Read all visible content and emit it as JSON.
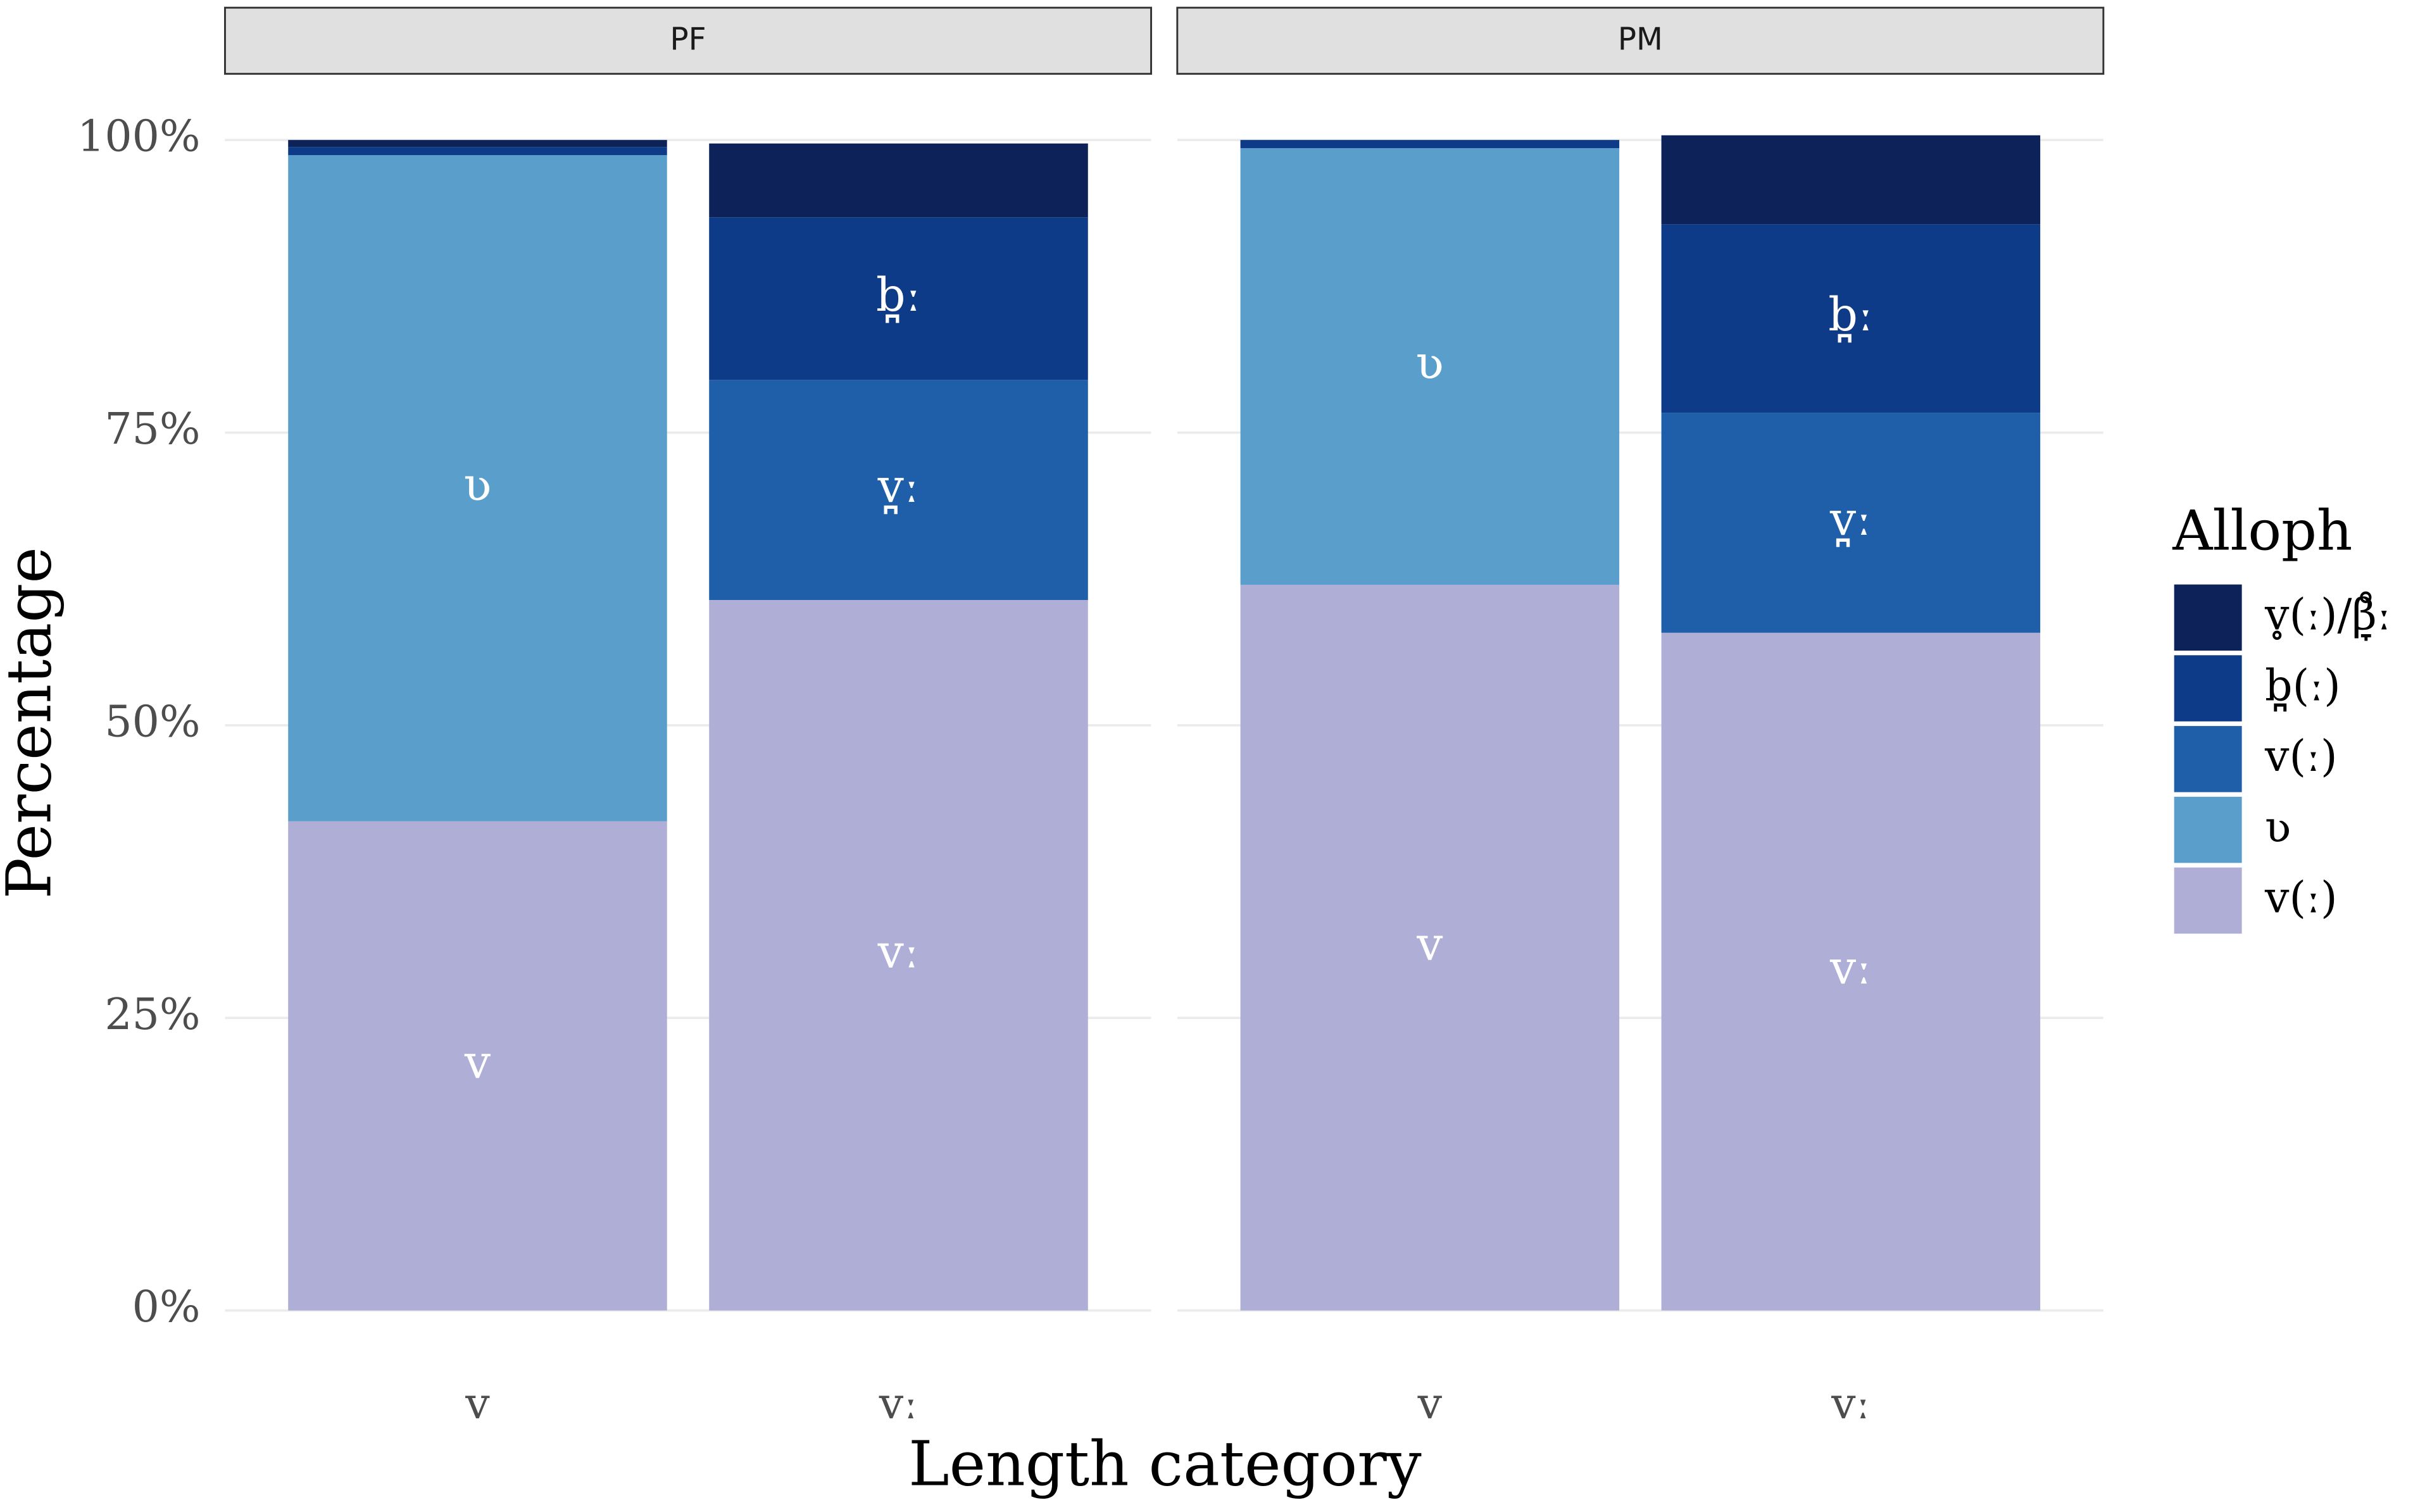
{
  "chart_data": {
    "type": "stacked_bar",
    "facets": [
      "PF",
      "PM"
    ],
    "categories": [
      [
        "v",
        "vː"
      ],
      [
        "v",
        "vː"
      ]
    ],
    "x_label": "Length category",
    "y_label": "Percentage",
    "legend_title": "Alloph",
    "ylim": [
      0,
      100
    ],
    "yticks": [
      {
        "value": 0,
        "label": "0%"
      },
      {
        "value": 25,
        "label": "25%"
      },
      {
        "value": 50,
        "label": "50%"
      },
      {
        "value": 75,
        "label": "75%"
      },
      {
        "value": 100,
        "label": "100%"
      }
    ],
    "grid": true,
    "legend": "right",
    "series": [
      {
        "name": "v(ː)",
        "color": "#aeaed6",
        "values": [
          [
            41.8,
            60.7
          ],
          [
            62.0,
            57.9
          ]
        ],
        "labels": [
          [
            "v",
            "vː"
          ],
          [
            "v",
            "vː"
          ]
        ]
      },
      {
        "name": "ʋ",
        "color": "#5a9fcc",
        "values": [
          [
            56.9,
            0
          ],
          [
            37.3,
            0
          ]
        ],
        "labels": [
          [
            "ʋ",
            null
          ],
          [
            "ʋ",
            null
          ]
        ]
      },
      {
        "name": "v(ː)",
        "color": "#1f5ea8",
        "values": [
          [
            0,
            18.8
          ],
          [
            0,
            18.8
          ]
        ],
        "labels": [
          [
            null,
            "v̪ː"
          ],
          [
            null,
            "v̪ː"
          ]
        ]
      },
      {
        "name": "b̪(ː)",
        "color": "#0d3b87",
        "values": [
          [
            0.7,
            13.9
          ],
          [
            0.7,
            16.1
          ]
        ],
        "labels": [
          [
            null,
            "b̪ː"
          ],
          [
            null,
            "b̪ː"
          ]
        ]
      },
      {
        "name": "v̥(ː)/β̞̊ː",
        "color": "#0c2259",
        "values": [
          [
            0.6,
            6.3
          ],
          [
            0,
            7.6
          ]
        ]
      }
    ]
  }
}
